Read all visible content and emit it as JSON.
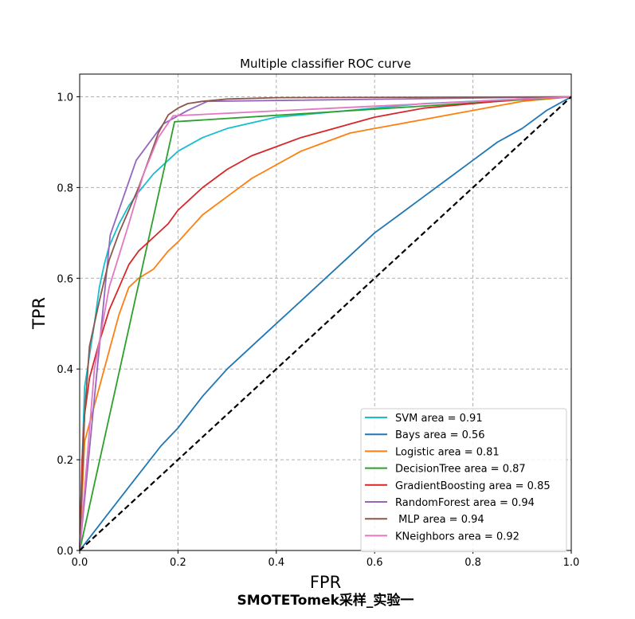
{
  "chart_data": {
    "type": "line",
    "title": "Multiple classifier ROC curve",
    "xlabel": "FPR",
    "ylabel": "TPR",
    "caption": "SMOTETomek采样_实验一",
    "xlim": [
      0.0,
      1.0
    ],
    "ylim": [
      0.0,
      1.05
    ],
    "xticks": [
      "0.0",
      "0.2",
      "0.4",
      "0.6",
      "0.8",
      "1.0"
    ],
    "yticks": [
      "0.0",
      "0.2",
      "0.4",
      "0.6",
      "0.8",
      "1.0"
    ],
    "grid": true,
    "legend_position": "lower-right",
    "diagonal": {
      "x": [
        0.0,
        1.0
      ],
      "y": [
        0.0,
        1.0
      ],
      "color": "#000000",
      "style": "dashed"
    },
    "series": [
      {
        "name": "SVM area = 0.91",
        "color": "#17becf",
        "x": [
          0,
          0.005,
          0.01,
          0.02,
          0.03,
          0.04,
          0.05,
          0.06,
          0.08,
          0.1,
          0.12,
          0.15,
          0.18,
          0.2,
          0.25,
          0.3,
          0.4,
          0.5,
          0.6,
          0.7,
          0.8,
          0.9,
          1.0
        ],
        "y": [
          0,
          0.2,
          0.36,
          0.43,
          0.5,
          0.58,
          0.63,
          0.67,
          0.72,
          0.76,
          0.79,
          0.83,
          0.86,
          0.88,
          0.91,
          0.93,
          0.955,
          0.965,
          0.975,
          0.985,
          0.99,
          0.995,
          1.0
        ]
      },
      {
        "name": "Bays area = 0.56",
        "color": "#1f77b4",
        "x": [
          0,
          0.05,
          0.1,
          0.165,
          0.2,
          0.25,
          0.3,
          0.35,
          0.4,
          0.45,
          0.5,
          0.55,
          0.6,
          0.65,
          0.7,
          0.75,
          0.8,
          0.85,
          0.9,
          0.95,
          1.0
        ],
        "y": [
          0,
          0.07,
          0.14,
          0.23,
          0.27,
          0.34,
          0.4,
          0.45,
          0.5,
          0.55,
          0.6,
          0.65,
          0.7,
          0.74,
          0.78,
          0.82,
          0.86,
          0.9,
          0.93,
          0.97,
          1.0
        ]
      },
      {
        "name": "Logistic area = 0.81",
        "color": "#ff7f0e",
        "x": [
          0,
          0.01,
          0.02,
          0.04,
          0.06,
          0.08,
          0.1,
          0.12,
          0.15,
          0.18,
          0.2,
          0.25,
          0.3,
          0.35,
          0.4,
          0.45,
          0.5,
          0.55,
          0.6,
          0.65,
          0.7,
          0.75,
          0.8,
          0.85,
          0.9,
          0.95,
          1.0
        ],
        "y": [
          0,
          0.24,
          0.28,
          0.36,
          0.44,
          0.52,
          0.58,
          0.6,
          0.62,
          0.66,
          0.68,
          0.74,
          0.78,
          0.82,
          0.85,
          0.88,
          0.9,
          0.92,
          0.93,
          0.94,
          0.95,
          0.96,
          0.97,
          0.98,
          0.99,
          0.995,
          1.0
        ]
      },
      {
        "name": "DecisionTree area = 0.87",
        "color": "#2ca02c",
        "x": [
          0,
          0.193,
          1.0
        ],
        "y": [
          0,
          0.945,
          1.0
        ]
      },
      {
        "name": "GradientBoosting area = 0.85",
        "color": "#d62728",
        "x": [
          0,
          0.005,
          0.01,
          0.02,
          0.04,
          0.06,
          0.08,
          0.1,
          0.12,
          0.15,
          0.18,
          0.2,
          0.25,
          0.3,
          0.35,
          0.4,
          0.45,
          0.5,
          0.55,
          0.6,
          0.65,
          0.7,
          0.8,
          0.9,
          1.0
        ],
        "y": [
          0,
          0.2,
          0.3,
          0.38,
          0.46,
          0.53,
          0.58,
          0.63,
          0.66,
          0.69,
          0.72,
          0.75,
          0.8,
          0.84,
          0.87,
          0.89,
          0.91,
          0.925,
          0.94,
          0.955,
          0.965,
          0.975,
          0.985,
          0.995,
          1.0
        ]
      },
      {
        "name": "RandomForest area = 0.94",
        "color": "#9467bd",
        "x": [
          0,
          0.062,
          0.115,
          0.17,
          0.22,
          0.26,
          1.0
        ],
        "y": [
          0,
          0.695,
          0.86,
          0.94,
          0.97,
          0.99,
          1.0
        ]
      },
      {
        "name": " MLP area = 0.94",
        "color": "#8c564b",
        "x": [
          0,
          0.01,
          0.02,
          0.04,
          0.06,
          0.08,
          0.1,
          0.12,
          0.14,
          0.16,
          0.18,
          0.2,
          0.22,
          0.25,
          0.3,
          0.4,
          1.0
        ],
        "y": [
          0,
          0.3,
          0.45,
          0.55,
          0.64,
          0.7,
          0.75,
          0.8,
          0.86,
          0.92,
          0.96,
          0.975,
          0.985,
          0.99,
          0.995,
          0.998,
          1.0
        ]
      },
      {
        "name": "KNeighbors area = 0.92",
        "color": "#e377c2",
        "x": [
          0,
          0.03,
          0.06,
          0.1,
          0.13,
          0.16,
          0.19,
          1.0
        ],
        "y": [
          0,
          0.4,
          0.58,
          0.72,
          0.83,
          0.91,
          0.958,
          1.0
        ]
      }
    ]
  }
}
